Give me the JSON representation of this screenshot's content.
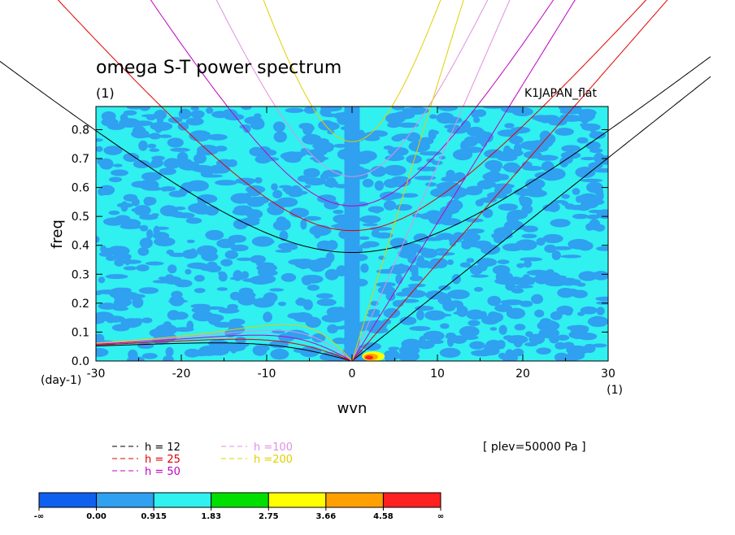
{
  "chart_data": {
    "type": "heatmap",
    "title": "omega S-T power spectrum",
    "units_label": "(1)",
    "dataset_label": "K1JAPAN_flat",
    "xlabel": "wvn",
    "ylabel": "freq",
    "x_unit_label": "(1)",
    "y_unit_label": "(day-1)",
    "xlim": [
      -30,
      30
    ],
    "ylim": [
      0,
      0.88
    ],
    "xticks": [
      "-30",
      "-20",
      "-10",
      "0",
      "10",
      "20",
      "30"
    ],
    "yticks": [
      "0.0",
      "0.1",
      "0.2",
      "0.3",
      "0.4",
      "0.5",
      "0.6",
      "0.7",
      "0.8"
    ],
    "plev_label": "[ plev=50000 Pa ]",
    "legend": [
      {
        "label": "h = 12",
        "color": "#000000"
      },
      {
        "label": "h = 25",
        "color": "#e00000"
      },
      {
        "label": "h = 50",
        "color": "#c000c0"
      },
      {
        "label": "h =100",
        "color": "#e090e0"
      },
      {
        "label": "h =200",
        "color": "#e0d000"
      }
    ],
    "colorbar": {
      "labels": [
        "-∞",
        "0.00",
        "0.915",
        "1.83",
        "2.75",
        "3.66",
        "4.58",
        "∞"
      ],
      "colors": [
        "#1060f0",
        "#30a0f0",
        "#30f0f0",
        "#00e000",
        "#ffff00",
        "#ffa000",
        "#ff2020"
      ]
    },
    "dispersion_curves": {
      "equivalent_depths_m": [
        12,
        25,
        50,
        100,
        200
      ]
    }
  }
}
